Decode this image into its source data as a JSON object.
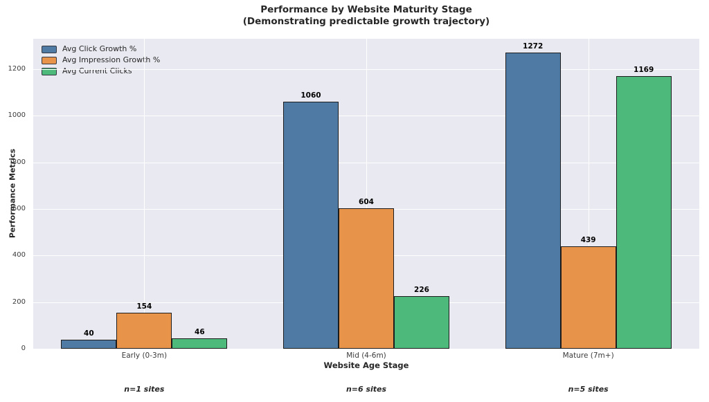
{
  "title": {
    "line1": "Performance by Website Maturity Stage",
    "line2": "(Demonstrating predictable growth trajectory)"
  },
  "chart_data": {
    "type": "bar",
    "title": "Performance by Website Maturity Stage",
    "subtitle": "(Demonstrating predictable growth trajectory)",
    "xlabel": "Website Age Stage",
    "ylabel": "Performance Metrics",
    "categories": [
      "Early (0-3m)",
      "Mid (4-6m)",
      "Mature (7m+)"
    ],
    "series": [
      {
        "name": "Avg Click Growth %",
        "color": "#4f7aa4",
        "values": [
          40,
          1060,
          1272
        ]
      },
      {
        "name": "Avg Impression Growth %",
        "color": "#e8934a",
        "values": [
          154,
          604,
          439
        ]
      },
      {
        "name": "Avg Current Clicks",
        "color": "#4dba7c",
        "values": [
          46,
          226,
          1169
        ]
      }
    ],
    "annotations": [
      "n=1 sites",
      "n=6 sites",
      "n=5 sites"
    ],
    "yticks": [
      0,
      200,
      400,
      600,
      800,
      1000,
      1200
    ],
    "ylim": [
      0,
      1331
    ],
    "grid": true,
    "legend_position": "upper left",
    "colors": {
      "plot_background": "#e9e9f1",
      "grid": "#ffffff",
      "bar_edge": "#1c1c1c",
      "text": "#262626",
      "tick_text": "#3a3a3a"
    }
  }
}
